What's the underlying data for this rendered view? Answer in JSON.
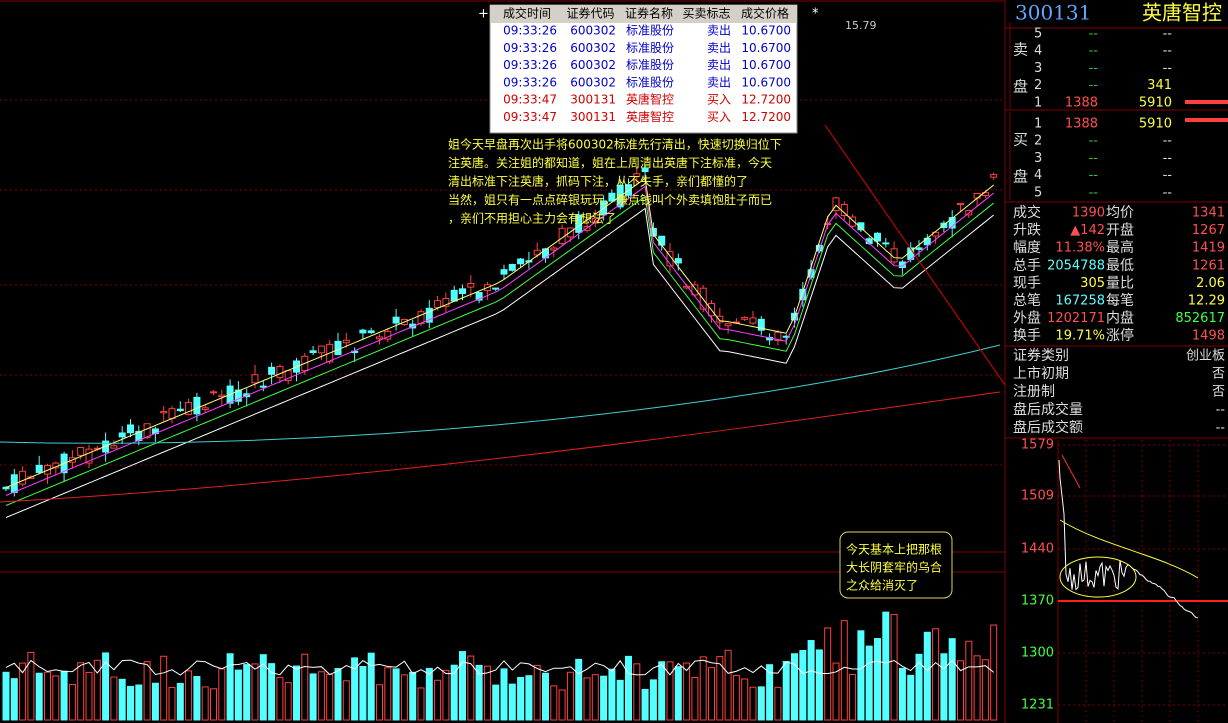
{
  "trades": {
    "headers": [
      "成交时间",
      "证券代码",
      "证券名称",
      "买卖标志",
      "成交价格"
    ],
    "rows": [
      [
        "09:33:26",
        "600302",
        "标准股份",
        "卖出",
        "10.6700"
      ],
      [
        "09:33:26",
        "600302",
        "标准股份",
        "卖出",
        "10.6700"
      ],
      [
        "09:33:26",
        "600302",
        "标准股份",
        "卖出",
        "10.6700"
      ],
      [
        "09:33:26",
        "600302",
        "标准股份",
        "卖出",
        "10.6700"
      ],
      [
        "09:33:47",
        "300131",
        "英唐智控",
        "买入",
        "12.7200"
      ],
      [
        "09:33:47",
        "300131",
        "英唐智控",
        "买入",
        "12.7200"
      ]
    ]
  },
  "annotations": {
    "note1": [
      "姐今天早盘再次出手将600302标准先行清出，快速切换归位下",
      "注英唐。关注姐的都知道，姐在上周清出英唐下注标准，今天",
      "清出标准下注英唐，抓码下注，从不失手，亲们都懂的了",
      "当然，姐只有一点点碎银玩玩，赚点钱叫个外卖填饱肚子而已",
      "，亲们不用担心主力会有想法了"
    ],
    "note2": [
      "今天基本上把那根",
      "大长阴套牢的乌合",
      "之众给消灭了"
    ],
    "peak": "15.79"
  },
  "quote": {
    "code": "300131",
    "name": "英唐智控",
    "sell_label": [
      "卖",
      "盘"
    ],
    "buy_label": [
      "买",
      "盘"
    ],
    "sell": [
      [
        "5",
        "--",
        "--"
      ],
      [
        "4",
        "--",
        "--"
      ],
      [
        "3",
        "--",
        "--"
      ],
      [
        "2",
        "--",
        "341"
      ],
      [
        "1",
        "1388",
        "5910"
      ]
    ],
    "buy": [
      [
        "1",
        "1388",
        "5910"
      ],
      [
        "2",
        "--",
        "--"
      ],
      [
        "3",
        "--",
        "--"
      ],
      [
        "4",
        "--",
        "--"
      ],
      [
        "5",
        "--",
        "--"
      ]
    ],
    "stats": [
      [
        "成交",
        "1390",
        "均价",
        "1341"
      ],
      [
        "升跌",
        "▲142",
        "开盘",
        "1267"
      ],
      [
        "幅度",
        "11.38%",
        "最高",
        "1419"
      ],
      [
        "总手",
        "2054788",
        "最低",
        "1261"
      ],
      [
        "现手",
        "305",
        "量比",
        "2.06"
      ],
      [
        "总笔",
        "167258",
        "每笔",
        "12.29"
      ],
      [
        "外盘",
        "1202171",
        "内盘",
        "852617"
      ],
      [
        "换手",
        "19.71%",
        "涨停",
        "1498"
      ]
    ],
    "info": [
      [
        "证券类别",
        "创业板"
      ],
      [
        "上市初期",
        "否"
      ],
      [
        "注册制",
        "否"
      ],
      [
        "盘后成交量",
        "--"
      ],
      [
        "盘后成交额",
        "--"
      ]
    ]
  },
  "mini": {
    "ylabels": [
      "1579",
      "1509",
      "1440",
      "1370",
      "1300",
      "1231"
    ]
  }
}
